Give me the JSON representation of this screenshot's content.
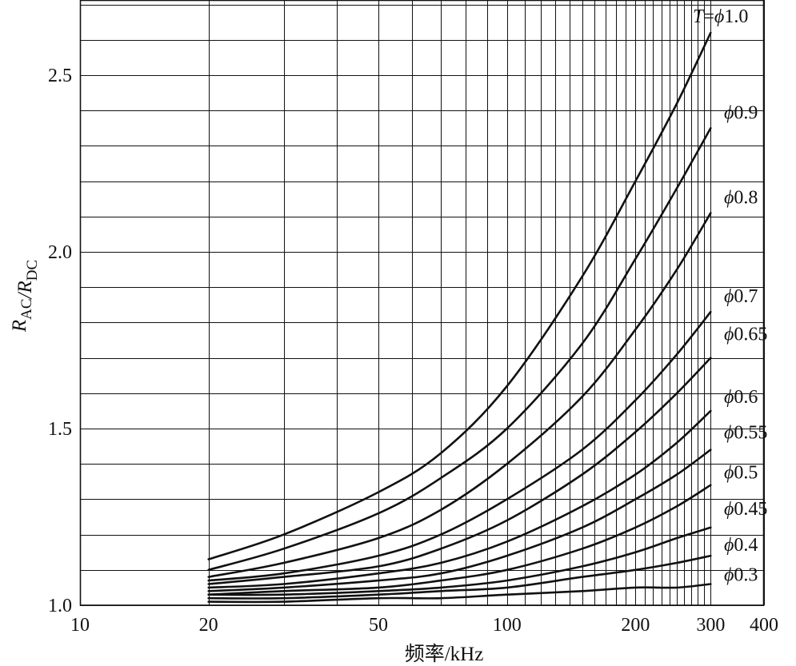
{
  "chart_data": {
    "type": "line",
    "xlabel": "频率/kHz",
    "ylabel": "R_AC/R_DC",
    "x_scale": "log",
    "xlim": [
      10,
      400
    ],
    "ylim": [
      1.0,
      2.7
    ],
    "x_ticks": [
      {
        "value": 10,
        "label": "10"
      },
      {
        "value": 20,
        "label": "20"
      },
      {
        "value": 50,
        "label": "50"
      },
      {
        "value": 100,
        "label": "100"
      },
      {
        "value": 200,
        "label": "200"
      },
      {
        "value": 300,
        "label": "300"
      },
      {
        "value": 400,
        "label": "400"
      }
    ],
    "y_ticks": [
      {
        "value": 1.0,
        "label": "1.0"
      },
      {
        "value": 1.5,
        "label": "1.5"
      },
      {
        "value": 2.0,
        "label": "2.0"
      },
      {
        "value": 2.5,
        "label": "2.5"
      }
    ],
    "grid": true,
    "x": [
      20,
      30,
      50,
      70,
      100,
      150,
      200,
      250,
      300
    ],
    "series": [
      {
        "name": "T=ϕ1.0",
        "values": [
          1.13,
          1.2,
          1.32,
          1.43,
          1.62,
          1.93,
          2.2,
          2.42,
          2.62
        ]
      },
      {
        "name": "ϕ0.9",
        "values": [
          1.1,
          1.16,
          1.26,
          1.36,
          1.5,
          1.74,
          1.98,
          2.18,
          2.35
        ]
      },
      {
        "name": "ϕ0.8",
        "values": [
          1.08,
          1.12,
          1.19,
          1.27,
          1.4,
          1.59,
          1.78,
          1.95,
          2.11
        ]
      },
      {
        "name": "ϕ0.7",
        "values": [
          1.07,
          1.09,
          1.14,
          1.2,
          1.3,
          1.44,
          1.58,
          1.71,
          1.83
        ]
      },
      {
        "name": "ϕ0.65",
        "values": [
          1.06,
          1.08,
          1.11,
          1.16,
          1.24,
          1.37,
          1.49,
          1.6,
          1.7
        ]
      },
      {
        "name": "ϕ0.6",
        "values": [
          1.05,
          1.06,
          1.09,
          1.12,
          1.18,
          1.28,
          1.37,
          1.46,
          1.55
        ]
      },
      {
        "name": "ϕ0.55",
        "values": [
          1.04,
          1.05,
          1.07,
          1.09,
          1.14,
          1.22,
          1.3,
          1.37,
          1.44
        ]
      },
      {
        "name": "ϕ0.5",
        "values": [
          1.03,
          1.04,
          1.05,
          1.07,
          1.1,
          1.16,
          1.22,
          1.28,
          1.34
        ]
      },
      {
        "name": "ϕ0.45",
        "values": [
          1.03,
          1.03,
          1.04,
          1.05,
          1.07,
          1.11,
          1.15,
          1.19,
          1.22
        ]
      },
      {
        "name": "ϕ0.4",
        "values": [
          1.02,
          1.02,
          1.03,
          1.04,
          1.05,
          1.08,
          1.1,
          1.12,
          1.14
        ]
      },
      {
        "name": "ϕ0.3",
        "values": [
          1.01,
          1.01,
          1.02,
          1.02,
          1.03,
          1.04,
          1.05,
          1.05,
          1.06
        ]
      }
    ]
  }
}
